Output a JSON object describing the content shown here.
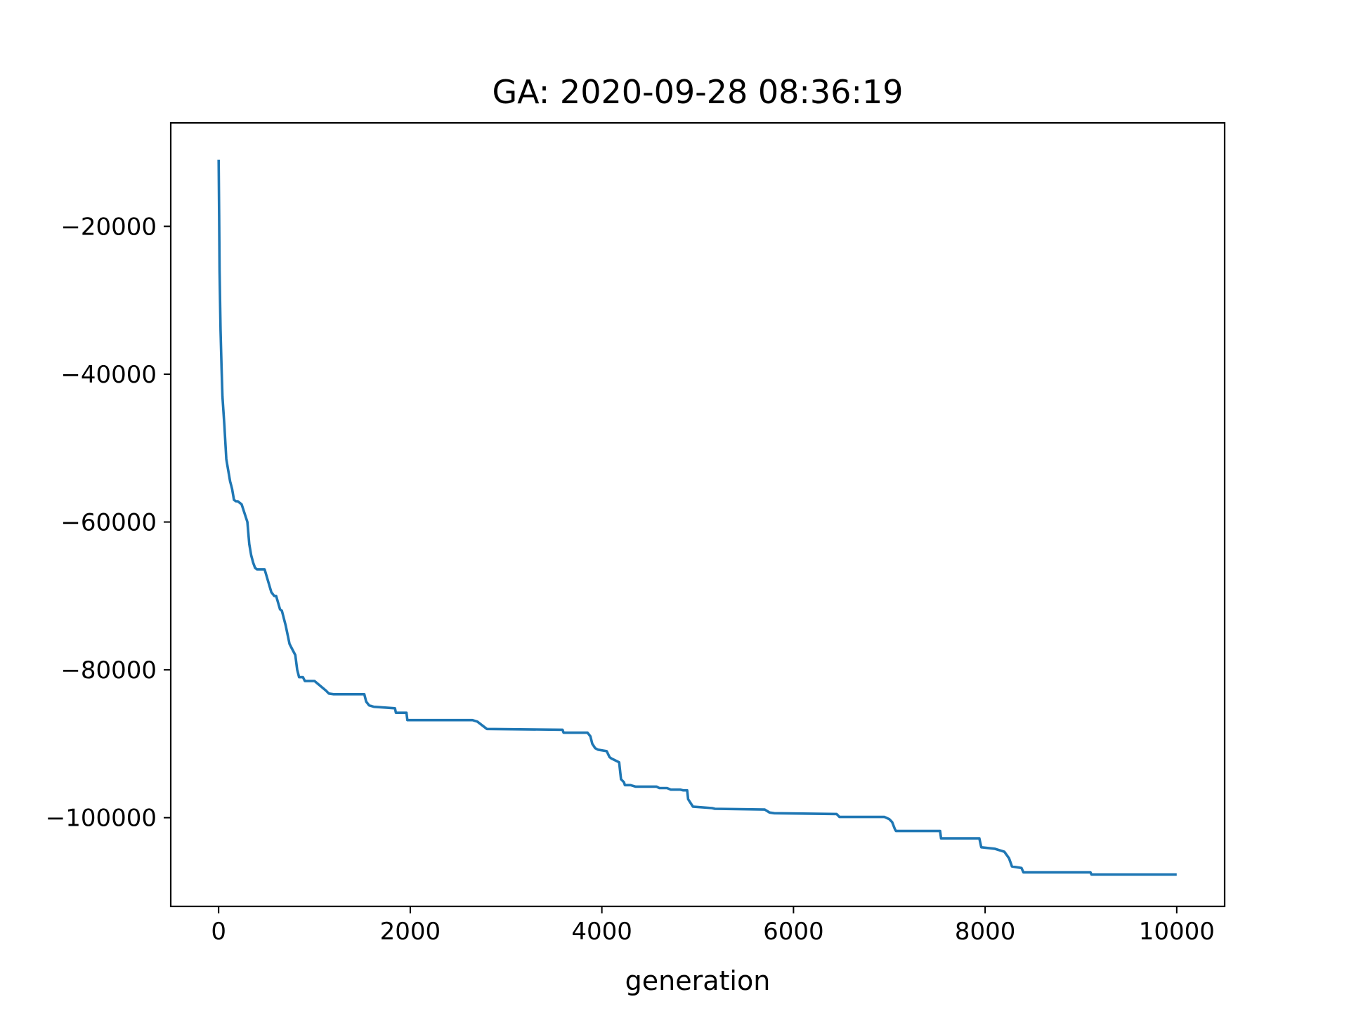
{
  "chart_data": {
    "type": "line",
    "title": "GA: 2020-09-28 08:36:19",
    "xlabel": "generation",
    "ylabel": "",
    "xlim": [
      -500,
      10500
    ],
    "ylim": [
      -112000,
      -6000
    ],
    "xticks": [
      0,
      2000,
      4000,
      6000,
      8000,
      10000
    ],
    "xtick_labels": [
      "0",
      "2000",
      "4000",
      "6000",
      "8000",
      "10000"
    ],
    "yticks": [
      -20000,
      -40000,
      -60000,
      -80000,
      -100000
    ],
    "ytick_labels": [
      "−20000",
      "−40000",
      "−60000",
      "−80000",
      "−100000"
    ],
    "grid": false,
    "line_color": "#1f77b4",
    "series": [
      {
        "x": [
          0,
          5,
          10,
          20,
          30,
          40,
          60,
          80,
          100,
          120,
          140,
          160,
          180,
          200,
          220,
          240,
          300,
          320,
          340,
          360,
          380,
          400,
          430,
          450,
          480,
          550,
          580,
          600,
          640,
          660,
          700,
          740,
          760,
          800,
          820,
          840,
          880,
          900,
          980,
          1000,
          1120,
          1150,
          1200,
          1270,
          1290,
          1520,
          1540,
          1570,
          1620,
          1840,
          1850,
          1960,
          1970,
          2000,
          2650,
          2700,
          2750,
          2800,
          3590,
          3600,
          3850,
          3880,
          3900,
          3930,
          3960,
          4050,
          4080,
          4100,
          4180,
          4200,
          4230,
          4240,
          4300,
          4350,
          4570,
          4600,
          4680,
          4720,
          4820,
          4850,
          4890,
          4900,
          4950,
          5150,
          5180,
          5700,
          5750,
          5800,
          6450,
          6480,
          6950,
          7000,
          7030,
          7060,
          7070,
          7530,
          7540,
          7940,
          7960,
          8100,
          8200,
          8250,
          8280,
          8380,
          8400,
          9100,
          9110,
          10000
        ],
        "y": [
          -11000,
          -18500,
          -26000,
          -34000,
          -39000,
          -43000,
          -47000,
          -51500,
          -53000,
          -54500,
          -55500,
          -57000,
          -57200,
          -57200,
          -57400,
          -57600,
          -60000,
          -63000,
          -64500,
          -65500,
          -66200,
          -66400,
          -66400,
          -66400,
          -66400,
          -69500,
          -70000,
          -70000,
          -71800,
          -72000,
          -74000,
          -76500,
          -77000,
          -78000,
          -80000,
          -81000,
          -81000,
          -81500,
          -81500,
          -81500,
          -82800,
          -83200,
          -83300,
          -83300,
          -83300,
          -83300,
          -84300,
          -84800,
          -85000,
          -85200,
          -85800,
          -85800,
          -86800,
          -86800,
          -86800,
          -87000,
          -87500,
          -88000,
          -88100,
          -88500,
          -88500,
          -89000,
          -90000,
          -90600,
          -90800,
          -91000,
          -91800,
          -92000,
          -92500,
          -94800,
          -95200,
          -95600,
          -95600,
          -95800,
          -95800,
          -96000,
          -96000,
          -96200,
          -96200,
          -96300,
          -96300,
          -97500,
          -98500,
          -98700,
          -98800,
          -98900,
          -99300,
          -99400,
          -99500,
          -99900,
          -99900,
          -100200,
          -100600,
          -101600,
          -101800,
          -101800,
          -102800,
          -102800,
          -104000,
          -104200,
          -104600,
          -105500,
          -106600,
          -106800,
          -107400,
          -107400,
          -107700,
          -107700
        ]
      }
    ]
  }
}
